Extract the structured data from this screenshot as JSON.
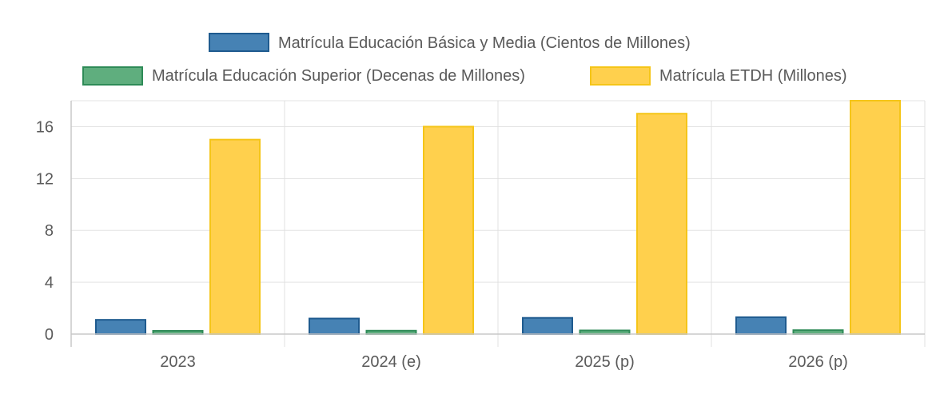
{
  "chart_data": {
    "type": "bar",
    "categories": [
      "2023",
      "2024 (e)",
      "2025 (p)",
      "2026 (p)"
    ],
    "series": [
      {
        "name": "Matrícula Educación Básica y Media (Cientos de Millones)",
        "values": [
          1.1,
          1.2,
          1.25,
          1.3
        ],
        "color": "#4682b4",
        "border": "#1f5b8f"
      },
      {
        "name": "Matrícula Educación Superior (Decenas de Millones)",
        "values": [
          0.25,
          0.26,
          0.28,
          0.3
        ],
        "color": "#5fae7e",
        "border": "#2e8b57"
      },
      {
        "name": "Matrícula ETDH (Millones)",
        "values": [
          15,
          16,
          17,
          18
        ],
        "color": "#ffd04d",
        "border": "#f5c518"
      }
    ],
    "yticks": [
      0,
      4,
      8,
      12,
      16
    ],
    "ylim": [
      0,
      18
    ],
    "grid": true,
    "legend_position": "top-center"
  }
}
